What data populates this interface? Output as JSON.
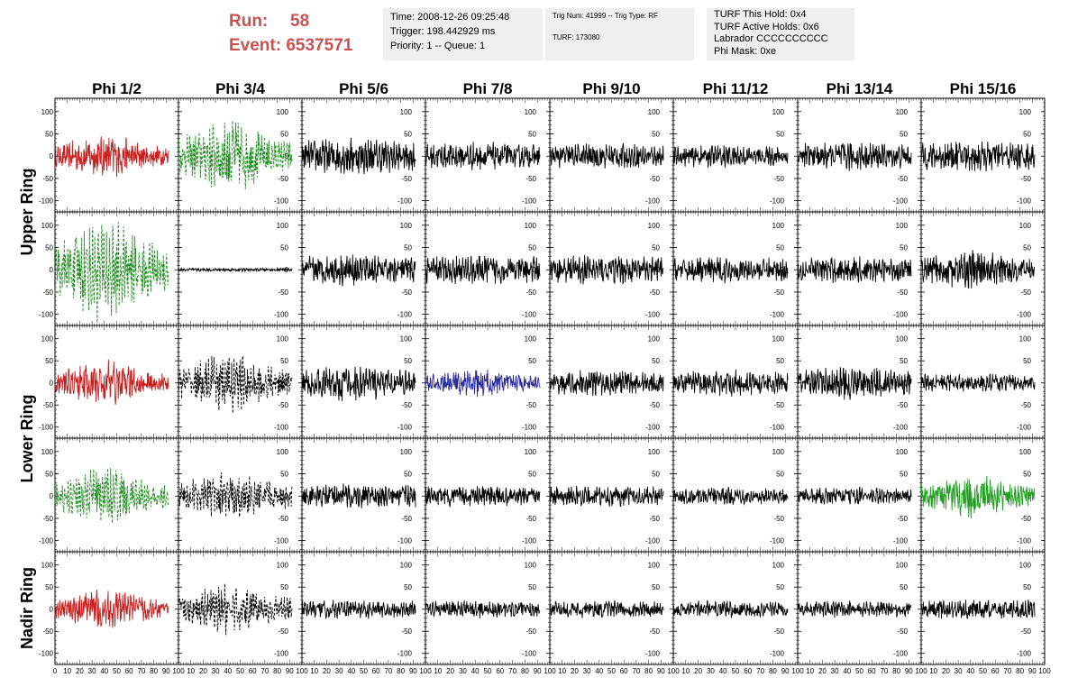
{
  "header": {
    "run_label": "Run:",
    "run_value": "58",
    "event_label": "Event:",
    "event_value": "6537571"
  },
  "info_boxes": [
    {
      "size": "normal",
      "lines": [
        "Time: 2008-12-26 09:25:48",
        "Trigger: 198.442929 ms",
        "Priority: 1 -- Queue: 1"
      ]
    },
    {
      "size": "small",
      "lines": [
        "Trig Num: 41999 -- Trig Type: RF",
        "",
        "TURF: 173080"
      ]
    },
    {
      "size": "normal",
      "lines": [
        "TURF This Hold: 0x4",
        "TURF Active Holds: 0x6",
        "Labrador CCCCCCCCCC",
        "Phi Mask: 0xe"
      ]
    }
  ],
  "chart_data": {
    "type": "line",
    "columns": [
      "Phi 1/2",
      "Phi 3/4",
      "Phi 5/6",
      "Phi 7/8",
      "Phi 9/10",
      "Phi 11/12",
      "Phi 13/14",
      "Phi 15/16"
    ],
    "rows": [
      "Upper Ring",
      "Upper Ring",
      "Lower Ring",
      "Lower Ring",
      "Nadir Ring"
    ],
    "row_labels": [
      {
        "text": "Upper Ring",
        "spans_rows": [
          0,
          1
        ]
      },
      {
        "text": "Lower Ring",
        "spans_rows": [
          2,
          3
        ]
      },
      {
        "text": "Nadir Ring",
        "spans_rows": [
          4
        ]
      }
    ],
    "xlim": [
      0,
      100
    ],
    "ylim": [
      -125,
      130
    ],
    "y_ticks": [
      -100,
      -50,
      0,
      50,
      100
    ],
    "x_tick_labels": [
      "0",
      "10",
      "20",
      "30",
      "40",
      "50",
      "60",
      "70",
      "80",
      "90",
      "100"
    ],
    "colors": {
      "black": "#000000",
      "red": "#c81e1e",
      "green": "#1e8c1e",
      "blue": "#2a2aa0",
      "brightgreen": "#22a022"
    },
    "panels": [
      [
        {
          "color": "red",
          "dashed": false,
          "amplitude": 45,
          "envelope": 0.5
        },
        {
          "color": "green",
          "dashed": true,
          "amplitude": 75,
          "envelope": 0.5
        },
        {
          "color": "black",
          "dashed": false,
          "amplitude": 42,
          "envelope": 0.15
        },
        {
          "color": "black",
          "dashed": false,
          "amplitude": 32,
          "envelope": 0.15
        },
        {
          "color": "black",
          "dashed": false,
          "amplitude": 30,
          "envelope": 0.1
        },
        {
          "color": "black",
          "dashed": false,
          "amplitude": 26,
          "envelope": 0.1
        },
        {
          "color": "black",
          "dashed": false,
          "amplitude": 34,
          "envelope": 0.15
        },
        {
          "color": "black",
          "dashed": false,
          "amplitude": 36,
          "envelope": 0.1
        }
      ],
      [
        {
          "color": "green",
          "dashed": true,
          "amplitude": 105,
          "envelope": 0.5
        },
        {
          "color": "black",
          "dashed": false,
          "amplitude": 4,
          "envelope": 0
        },
        {
          "color": "black",
          "dashed": false,
          "amplitude": 36,
          "envelope": 0.1
        },
        {
          "color": "black",
          "dashed": false,
          "amplitude": 34,
          "envelope": 0.1
        },
        {
          "color": "black",
          "dashed": false,
          "amplitude": 34,
          "envelope": 0.1
        },
        {
          "color": "black",
          "dashed": false,
          "amplitude": 30,
          "envelope": 0.1
        },
        {
          "color": "black",
          "dashed": false,
          "amplitude": 30,
          "envelope": 0.1
        },
        {
          "color": "black",
          "dashed": false,
          "amplitude": 42,
          "envelope": 0.4
        }
      ],
      [
        {
          "color": "red",
          "dashed": false,
          "amplitude": 45,
          "envelope": 0.5
        },
        {
          "color": "black",
          "dashed": true,
          "amplitude": 60,
          "envelope": 0.5
        },
        {
          "color": "black",
          "dashed": false,
          "amplitude": 42,
          "envelope": 0.3
        },
        {
          "color": "blue",
          "dashed": false,
          "amplitude": 28,
          "envelope": 0.4
        },
        {
          "color": "black",
          "dashed": false,
          "amplitude": 30,
          "envelope": 0.1
        },
        {
          "color": "black",
          "dashed": false,
          "amplitude": 30,
          "envelope": 0.1
        },
        {
          "color": "black",
          "dashed": false,
          "amplitude": 38,
          "envelope": 0.2
        },
        {
          "color": "black",
          "dashed": false,
          "amplitude": 22,
          "envelope": 0.1
        }
      ],
      [
        {
          "color": "green",
          "dashed": true,
          "amplitude": 55,
          "envelope": 0.5
        },
        {
          "color": "black",
          "dashed": true,
          "amplitude": 48,
          "envelope": 0.4
        },
        {
          "color": "black",
          "dashed": false,
          "amplitude": 28,
          "envelope": 0.1
        },
        {
          "color": "black",
          "dashed": false,
          "amplitude": 24,
          "envelope": 0.1
        },
        {
          "color": "black",
          "dashed": false,
          "amplitude": 24,
          "envelope": 0.1
        },
        {
          "color": "black",
          "dashed": false,
          "amplitude": 20,
          "envelope": 0.1
        },
        {
          "color": "black",
          "dashed": false,
          "amplitude": 20,
          "envelope": 0.1
        },
        {
          "color": "brightgreen",
          "dashed": false,
          "amplitude": 45,
          "envelope": 0.5
        }
      ],
      [
        {
          "color": "red",
          "dashed": false,
          "amplitude": 42,
          "envelope": 0.5
        },
        {
          "color": "black",
          "dashed": true,
          "amplitude": 50,
          "envelope": 0.45
        },
        {
          "color": "black",
          "dashed": false,
          "amplitude": 22,
          "envelope": 0.1
        },
        {
          "color": "black",
          "dashed": false,
          "amplitude": 20,
          "envelope": 0.1
        },
        {
          "color": "black",
          "dashed": false,
          "amplitude": 20,
          "envelope": 0.1
        },
        {
          "color": "black",
          "dashed": false,
          "amplitude": 20,
          "envelope": 0.1
        },
        {
          "color": "black",
          "dashed": false,
          "amplitude": 20,
          "envelope": 0.1
        },
        {
          "color": "black",
          "dashed": false,
          "amplitude": 24,
          "envelope": 0.1
        }
      ]
    ]
  }
}
